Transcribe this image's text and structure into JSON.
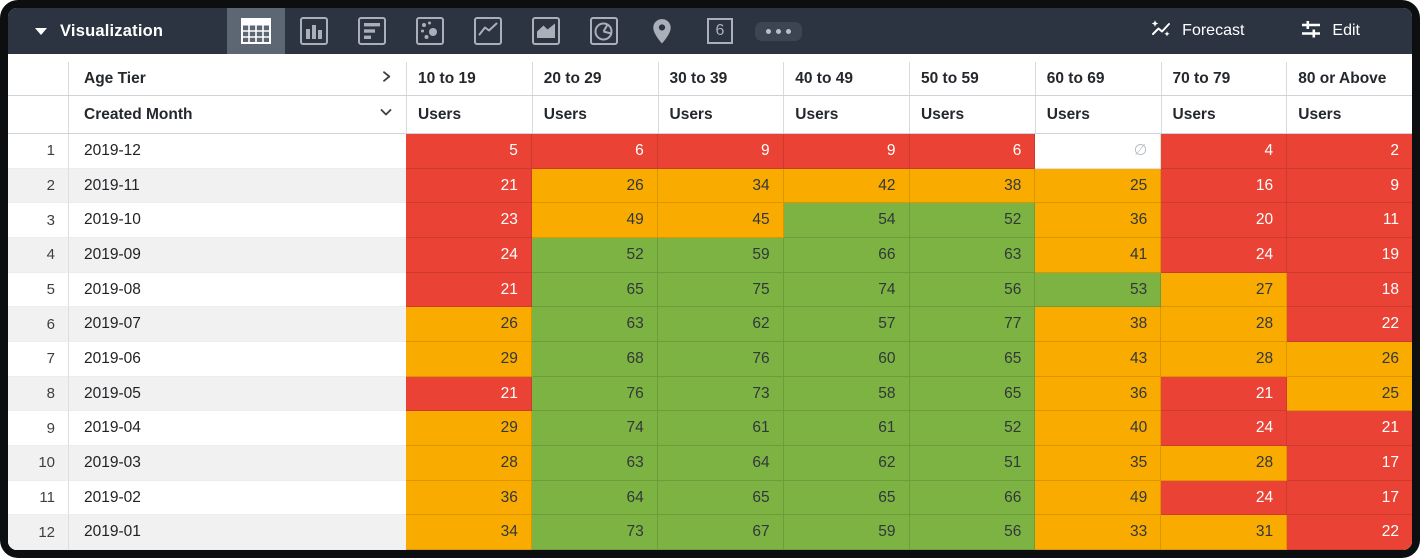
{
  "toolbar": {
    "title": "Visualization",
    "tabs": [
      {
        "name": "table-icon",
        "selected": true
      },
      {
        "name": "column-chart-icon",
        "selected": false
      },
      {
        "name": "bar-chart-icon",
        "selected": false
      },
      {
        "name": "scatter-plot-icon",
        "selected": false
      },
      {
        "name": "line-chart-icon",
        "selected": false
      },
      {
        "name": "area-chart-icon",
        "selected": false
      },
      {
        "name": "pie-chart-icon",
        "selected": false
      },
      {
        "name": "map-pin-icon",
        "selected": false
      },
      {
        "name": "single-value-icon",
        "selected": false,
        "glyph": "6"
      },
      {
        "name": "more-options-icon",
        "selected": false
      }
    ],
    "forecast_label": "Forecast",
    "edit_label": "Edit"
  },
  "table": {
    "pivot_field_label": "Age Tier",
    "row_field_label": "Created Month",
    "measure_label": "Users",
    "null_symbol": "∅",
    "tiers": [
      "10 to 19",
      "20 to 29",
      "30 to 39",
      "40 to 49",
      "50 to 59",
      "60 to 69",
      "70 to 79",
      "80 or Above"
    ],
    "rows": [
      {
        "num": "1",
        "month": "2019-12",
        "cells": [
          {
            "v": "5",
            "c": "red"
          },
          {
            "v": "6",
            "c": "red"
          },
          {
            "v": "9",
            "c": "red"
          },
          {
            "v": "9",
            "c": "red"
          },
          {
            "v": "6",
            "c": "red"
          },
          {
            "v": "∅",
            "c": "null"
          },
          {
            "v": "4",
            "c": "red"
          },
          {
            "v": "2",
            "c": "red"
          }
        ]
      },
      {
        "num": "2",
        "month": "2019-11",
        "cells": [
          {
            "v": "21",
            "c": "red"
          },
          {
            "v": "26",
            "c": "orange"
          },
          {
            "v": "34",
            "c": "orange"
          },
          {
            "v": "42",
            "c": "orange"
          },
          {
            "v": "38",
            "c": "orange"
          },
          {
            "v": "25",
            "c": "orange"
          },
          {
            "v": "16",
            "c": "red"
          },
          {
            "v": "9",
            "c": "red"
          }
        ]
      },
      {
        "num": "3",
        "month": "2019-10",
        "cells": [
          {
            "v": "23",
            "c": "red"
          },
          {
            "v": "49",
            "c": "orange"
          },
          {
            "v": "45",
            "c": "orange"
          },
          {
            "v": "54",
            "c": "green"
          },
          {
            "v": "52",
            "c": "green"
          },
          {
            "v": "36",
            "c": "orange"
          },
          {
            "v": "20",
            "c": "red"
          },
          {
            "v": "11",
            "c": "red"
          }
        ]
      },
      {
        "num": "4",
        "month": "2019-09",
        "cells": [
          {
            "v": "24",
            "c": "red"
          },
          {
            "v": "52",
            "c": "green"
          },
          {
            "v": "59",
            "c": "green"
          },
          {
            "v": "66",
            "c": "green"
          },
          {
            "v": "63",
            "c": "green"
          },
          {
            "v": "41",
            "c": "orange"
          },
          {
            "v": "24",
            "c": "red"
          },
          {
            "v": "19",
            "c": "red"
          }
        ]
      },
      {
        "num": "5",
        "month": "2019-08",
        "cells": [
          {
            "v": "21",
            "c": "red"
          },
          {
            "v": "65",
            "c": "green"
          },
          {
            "v": "75",
            "c": "green"
          },
          {
            "v": "74",
            "c": "green"
          },
          {
            "v": "56",
            "c": "green"
          },
          {
            "v": "53",
            "c": "green"
          },
          {
            "v": "27",
            "c": "orange"
          },
          {
            "v": "18",
            "c": "red"
          }
        ]
      },
      {
        "num": "6",
        "month": "2019-07",
        "cells": [
          {
            "v": "26",
            "c": "orange"
          },
          {
            "v": "63",
            "c": "green"
          },
          {
            "v": "62",
            "c": "green"
          },
          {
            "v": "57",
            "c": "green"
          },
          {
            "v": "77",
            "c": "green"
          },
          {
            "v": "38",
            "c": "orange"
          },
          {
            "v": "28",
            "c": "orange"
          },
          {
            "v": "22",
            "c": "red"
          }
        ]
      },
      {
        "num": "7",
        "month": "2019-06",
        "cells": [
          {
            "v": "29",
            "c": "orange"
          },
          {
            "v": "68",
            "c": "green"
          },
          {
            "v": "76",
            "c": "green"
          },
          {
            "v": "60",
            "c": "green"
          },
          {
            "v": "65",
            "c": "green"
          },
          {
            "v": "43",
            "c": "orange"
          },
          {
            "v": "28",
            "c": "orange"
          },
          {
            "v": "26",
            "c": "orange"
          }
        ]
      },
      {
        "num": "8",
        "month": "2019-05",
        "cells": [
          {
            "v": "21",
            "c": "red"
          },
          {
            "v": "76",
            "c": "green"
          },
          {
            "v": "73",
            "c": "green"
          },
          {
            "v": "58",
            "c": "green"
          },
          {
            "v": "65",
            "c": "green"
          },
          {
            "v": "36",
            "c": "orange"
          },
          {
            "v": "21",
            "c": "red"
          },
          {
            "v": "25",
            "c": "orange"
          }
        ]
      },
      {
        "num": "9",
        "month": "2019-04",
        "cells": [
          {
            "v": "29",
            "c": "orange"
          },
          {
            "v": "74",
            "c": "green"
          },
          {
            "v": "61",
            "c": "green"
          },
          {
            "v": "61",
            "c": "green"
          },
          {
            "v": "52",
            "c": "green"
          },
          {
            "v": "40",
            "c": "orange"
          },
          {
            "v": "24",
            "c": "red"
          },
          {
            "v": "21",
            "c": "red"
          }
        ]
      },
      {
        "num": "10",
        "month": "2019-03",
        "cells": [
          {
            "v": "28",
            "c": "orange"
          },
          {
            "v": "63",
            "c": "green"
          },
          {
            "v": "64",
            "c": "green"
          },
          {
            "v": "62",
            "c": "green"
          },
          {
            "v": "51",
            "c": "green"
          },
          {
            "v": "35",
            "c": "orange"
          },
          {
            "v": "28",
            "c": "orange"
          },
          {
            "v": "17",
            "c": "red"
          }
        ]
      },
      {
        "num": "11",
        "month": "2019-02",
        "cells": [
          {
            "v": "36",
            "c": "orange"
          },
          {
            "v": "64",
            "c": "green"
          },
          {
            "v": "65",
            "c": "green"
          },
          {
            "v": "65",
            "c": "green"
          },
          {
            "v": "66",
            "c": "green"
          },
          {
            "v": "49",
            "c": "orange"
          },
          {
            "v": "24",
            "c": "red"
          },
          {
            "v": "17",
            "c": "red"
          }
        ]
      },
      {
        "num": "12",
        "month": "2019-01",
        "cells": [
          {
            "v": "34",
            "c": "orange"
          },
          {
            "v": "73",
            "c": "green"
          },
          {
            "v": "67",
            "c": "green"
          },
          {
            "v": "59",
            "c": "green"
          },
          {
            "v": "56",
            "c": "green"
          },
          {
            "v": "33",
            "c": "orange"
          },
          {
            "v": "31",
            "c": "orange"
          },
          {
            "v": "22",
            "c": "red"
          }
        ]
      }
    ]
  },
  "colors": {
    "red": "#ea4335",
    "orange": "#f9ab00",
    "green": "#7cb342",
    "toolbar_bg": "#2b3440",
    "tab_selected_bg": "#5d6673"
  }
}
